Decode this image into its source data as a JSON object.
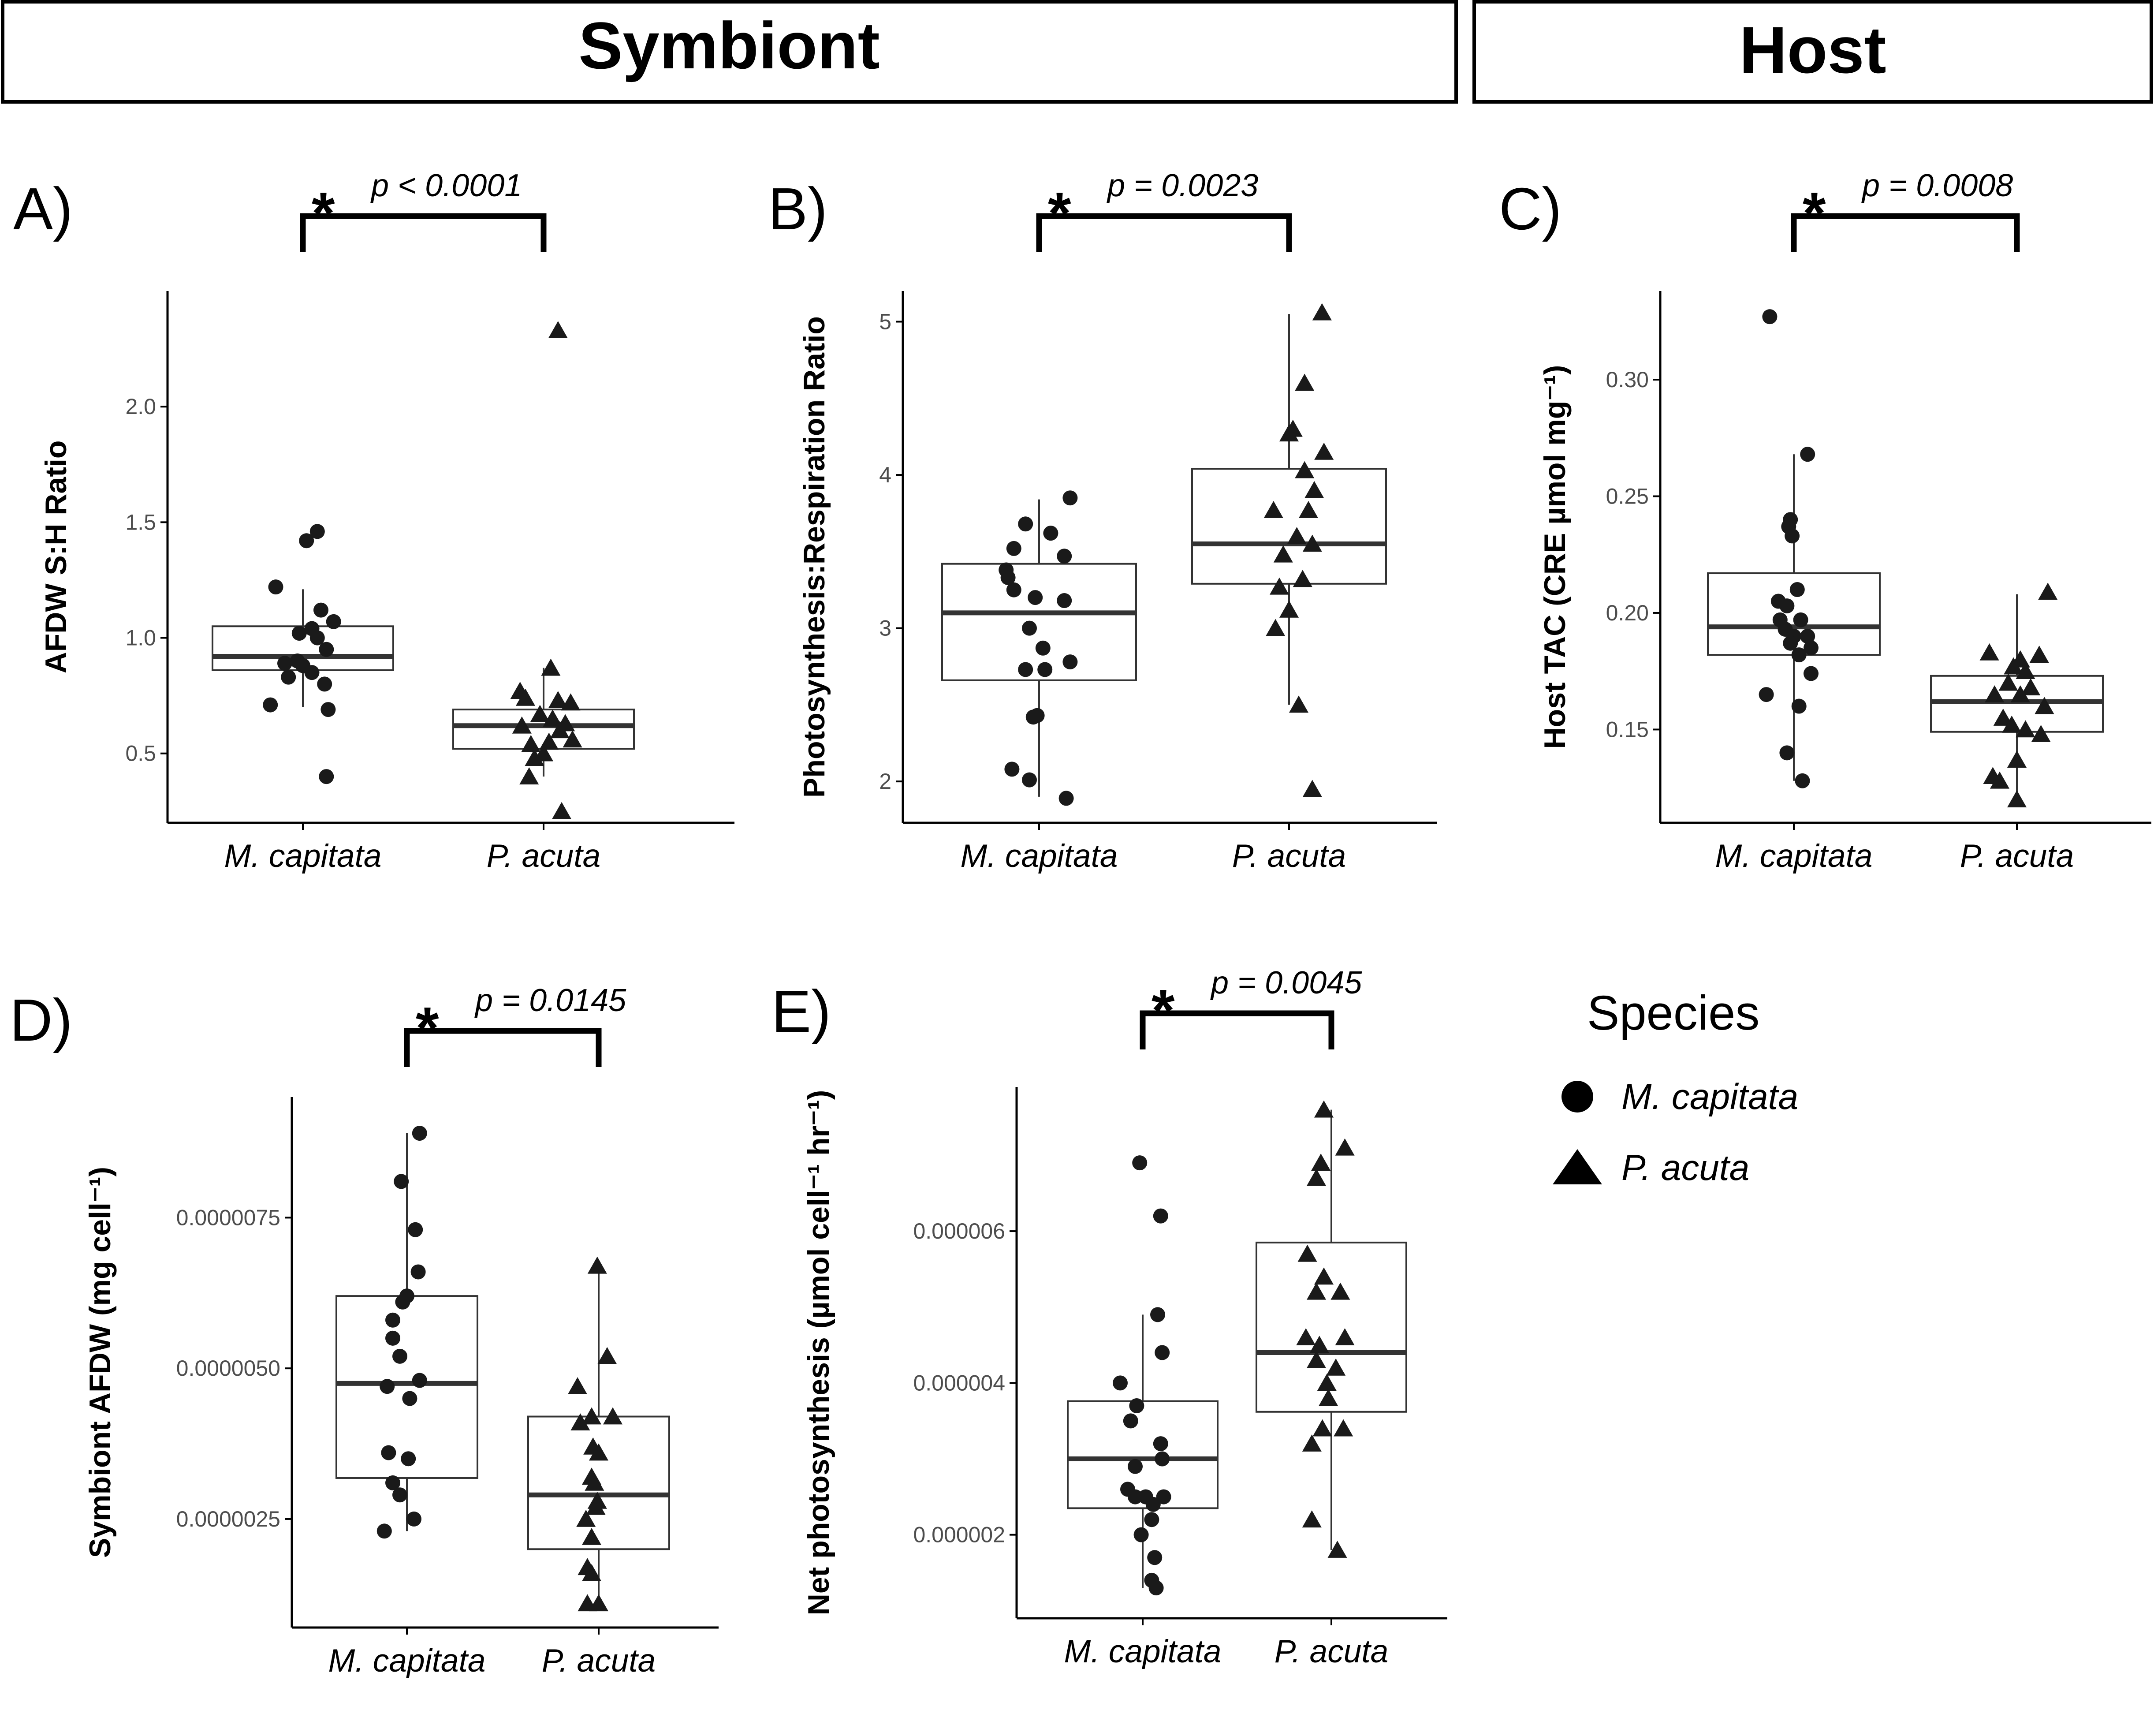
{
  "headers": [
    {
      "key": "symbiont",
      "label": "Symbiont"
    },
    {
      "key": "host",
      "label": "Host"
    }
  ],
  "legend": {
    "title": "Species",
    "items": [
      {
        "label": "M. capitata",
        "shape": "circle"
      },
      {
        "label": "P. acuta",
        "shape": "triangle"
      }
    ]
  },
  "colors": {
    "point": "#1a1a1a",
    "box_line": "#333333",
    "median": "#333333",
    "axis": "#000000",
    "tick_text": "#4d4d4d"
  },
  "chart_data": [
    {
      "type": "box",
      "letter": "A)",
      "ylabel": "AFDW S:H Ratio",
      "ylim": [
        0.2,
        2.5
      ],
      "yticks": [
        0.5,
        1.0,
        1.5,
        2.0
      ],
      "ytick_labels": [
        "0.5",
        "1.0",
        "1.5",
        "2.0"
      ],
      "categories": [
        "M. capitata",
        "P. acuta"
      ],
      "significance": {
        "star": "*",
        "label": "p < 0.0001"
      },
      "boxes": [
        {
          "q1": 0.86,
          "median": 0.92,
          "q3": 1.05,
          "whisker_low": 0.7,
          "whisker_high": 1.21
        },
        {
          "q1": 0.52,
          "median": 0.62,
          "q3": 0.69,
          "whisker_low": 0.4,
          "whisker_high": 0.87
        }
      ],
      "points": [
        [
          [
            -0.15,
            1.22
          ],
          [
            0.08,
            1.46
          ],
          [
            0.02,
            1.42
          ],
          [
            0.1,
            1.12
          ],
          [
            0.17,
            1.07
          ],
          [
            0.05,
            1.04
          ],
          [
            -0.02,
            1.02
          ],
          [
            0.08,
            1.0
          ],
          [
            0.13,
            0.95
          ],
          [
            -0.03,
            0.9
          ],
          [
            0.0,
            0.88
          ],
          [
            -0.1,
            0.89
          ],
          [
            0.05,
            0.85
          ],
          [
            -0.08,
            0.83
          ],
          [
            0.12,
            0.8
          ],
          [
            -0.18,
            0.71
          ],
          [
            0.14,
            0.69
          ],
          [
            0.13,
            0.4
          ]
        ],
        [
          [
            -0.13,
            0.77
          ],
          [
            -0.1,
            0.74
          ],
          [
            0.04,
            0.87
          ],
          [
            0.08,
            0.73
          ],
          [
            0.15,
            0.72
          ],
          [
            -0.02,
            0.67
          ],
          [
            0.05,
            0.65
          ],
          [
            0.09,
            0.6
          ],
          [
            -0.12,
            0.62
          ],
          [
            0.12,
            0.63
          ],
          [
            -0.07,
            0.54
          ],
          [
            0.16,
            0.56
          ],
          [
            0.03,
            0.55
          ],
          [
            -0.05,
            0.48
          ],
          [
            0.0,
            0.5
          ],
          [
            -0.08,
            0.4
          ],
          [
            0.1,
            0.25
          ],
          [
            0.08,
            2.33
          ]
        ]
      ]
    },
    {
      "type": "box",
      "letter": "B)",
      "ylabel": "Photosynthesis:Respiration Ratio",
      "ylim": [
        1.73,
        5.2
      ],
      "yticks": [
        2,
        3,
        4,
        5
      ],
      "ytick_labels": [
        "2",
        "3",
        "4",
        "5"
      ],
      "categories": [
        "M. capitata",
        "P. acuta"
      ],
      "significance": {
        "star": "*",
        "label": "p = 0.0023"
      },
      "boxes": [
        {
          "q1": 2.66,
          "median": 3.1,
          "q3": 3.42,
          "whisker_low": 1.9,
          "whisker_high": 3.84
        },
        {
          "q1": 3.29,
          "median": 3.55,
          "q3": 4.04,
          "whisker_low": 2.5,
          "whisker_high": 5.05
        }
      ],
      "points": [
        [
          [
            0.16,
            3.85
          ],
          [
            -0.07,
            3.68
          ],
          [
            0.06,
            3.62
          ],
          [
            -0.13,
            3.52
          ],
          [
            0.13,
            3.47
          ],
          [
            -0.17,
            3.38
          ],
          [
            -0.16,
            3.33
          ],
          [
            -0.13,
            3.25
          ],
          [
            0.13,
            3.18
          ],
          [
            -0.02,
            3.2
          ],
          [
            -0.05,
            3.0
          ],
          [
            0.02,
            2.87
          ],
          [
            0.16,
            2.78
          ],
          [
            -0.07,
            2.73
          ],
          [
            0.03,
            2.73
          ],
          [
            -0.03,
            2.42
          ],
          [
            -0.01,
            2.43
          ],
          [
            -0.14,
            2.08
          ],
          [
            -0.05,
            2.01
          ],
          [
            0.14,
            1.89
          ]
        ],
        [
          [
            0.17,
            5.06
          ],
          [
            0.08,
            4.6
          ],
          [
            0.02,
            4.3
          ],
          [
            0.0,
            4.27
          ],
          [
            0.18,
            4.15
          ],
          [
            0.08,
            4.03
          ],
          [
            0.13,
            3.9
          ],
          [
            -0.08,
            3.77
          ],
          [
            0.1,
            3.77
          ],
          [
            0.04,
            3.6
          ],
          [
            0.12,
            3.55
          ],
          [
            -0.03,
            3.48
          ],
          [
            0.07,
            3.32
          ],
          [
            -0.05,
            3.27
          ],
          [
            0.0,
            3.12
          ],
          [
            -0.07,
            3.0
          ],
          [
            0.05,
            2.5
          ],
          [
            0.12,
            1.95
          ]
        ]
      ]
    },
    {
      "type": "box",
      "letter": "C)",
      "ylabel": "Host TAC (CRE µmol mg⁻¹)",
      "ylim": [
        0.11,
        0.338
      ],
      "yticks": [
        0.15,
        0.2,
        0.25,
        0.3
      ],
      "ytick_labels": [
        "0.15",
        "0.20",
        "0.25",
        "0.30"
      ],
      "categories": [
        "M. capitata",
        "P. acuta"
      ],
      "significance": {
        "star": "*",
        "label": "p = 0.0008"
      },
      "boxes": [
        {
          "q1": 0.182,
          "median": 0.194,
          "q3": 0.217,
          "whisker_low": 0.128,
          "whisker_high": 0.268
        },
        {
          "q1": 0.149,
          "median": 0.162,
          "q3": 0.173,
          "whisker_low": 0.12,
          "whisker_high": 0.208
        }
      ],
      "points": [
        [
          [
            -0.14,
            0.327
          ],
          [
            0.08,
            0.268
          ],
          [
            -0.02,
            0.24
          ],
          [
            -0.03,
            0.237
          ],
          [
            -0.01,
            0.233
          ],
          [
            0.02,
            0.21
          ],
          [
            -0.09,
            0.205
          ],
          [
            -0.04,
            0.203
          ],
          [
            0.04,
            0.197
          ],
          [
            -0.08,
            0.197
          ],
          [
            -0.05,
            0.193
          ],
          [
            0.08,
            0.19
          ],
          [
            0.0,
            0.19
          ],
          [
            -0.02,
            0.187
          ],
          [
            0.1,
            0.185
          ],
          [
            0.03,
            0.182
          ],
          [
            0.1,
            0.174
          ],
          [
            -0.16,
            0.165
          ],
          [
            0.03,
            0.16
          ],
          [
            -0.04,
            0.14
          ],
          [
            0.05,
            0.128
          ]
        ],
        [
          [
            0.18,
            0.209
          ],
          [
            -0.16,
            0.183
          ],
          [
            0.13,
            0.182
          ],
          [
            0.02,
            0.18
          ],
          [
            -0.02,
            0.177
          ],
          [
            0.05,
            0.175
          ],
          [
            -0.05,
            0.17
          ],
          [
            0.08,
            0.168
          ],
          [
            0.02,
            0.165
          ],
          [
            -0.13,
            0.165
          ],
          [
            0.16,
            0.16
          ],
          [
            -0.08,
            0.155
          ],
          [
            -0.03,
            0.152
          ],
          [
            0.05,
            0.15
          ],
          [
            0.14,
            0.148
          ],
          [
            0.0,
            0.137
          ],
          [
            -0.14,
            0.13
          ],
          [
            -0.1,
            0.128
          ],
          [
            0.0,
            0.12
          ]
        ]
      ]
    },
    {
      "type": "box",
      "letter": "D)",
      "ylabel": "Symbiont AFDW (mg cell⁻¹)",
      "ylim": [
        7e-07,
        9.5e-06
      ],
      "yticks": [
        2.5e-06,
        5e-06,
        7.5e-06
      ],
      "ytick_labels": [
        "0.0000025",
        "0.0000050",
        "0.0000075"
      ],
      "categories": [
        "M. capitata",
        "P. acuta"
      ],
      "significance": {
        "star": "*",
        "label": "p = 0.0145"
      },
      "boxes": [
        {
          "q1": 3.18e-06,
          "median": 4.75e-06,
          "q3": 6.2e-06,
          "whisker_low": 2.3e-06,
          "whisker_high": 8.9e-06
        },
        {
          "q1": 2e-06,
          "median": 2.9e-06,
          "q3": 4.2e-06,
          "whisker_low": 1.1e-06,
          "whisker_high": 6.7e-06
        }
      ],
      "points": [
        [
          [
            0.09,
            8.9e-06
          ],
          [
            -0.04,
            8.1e-06
          ],
          [
            0.06,
            7.3e-06
          ],
          [
            0.08,
            6.6e-06
          ],
          [
            -0.03,
            6.1e-06
          ],
          [
            0.0,
            6.2e-06
          ],
          [
            -0.1,
            5.8e-06
          ],
          [
            -0.1,
            5.5e-06
          ],
          [
            -0.05,
            5.2e-06
          ],
          [
            0.09,
            4.8e-06
          ],
          [
            -0.14,
            4.7e-06
          ],
          [
            0.02,
            4.5e-06
          ],
          [
            -0.13,
            3.6e-06
          ],
          [
            0.01,
            3.5e-06
          ],
          [
            -0.1,
            3.1e-06
          ],
          [
            -0.05,
            2.9e-06
          ],
          [
            0.05,
            2.5e-06
          ],
          [
            -0.16,
            2.3e-06
          ]
        ],
        [
          [
            -0.01,
            6.7e-06
          ],
          [
            0.06,
            5.2e-06
          ],
          [
            -0.15,
            4.7e-06
          ],
          [
            0.1,
            4.2e-06
          ],
          [
            -0.05,
            4.2e-06
          ],
          [
            -0.13,
            4.1e-06
          ],
          [
            -0.04,
            3.7e-06
          ],
          [
            0.0,
            3.6e-06
          ],
          [
            -0.05,
            3.2e-06
          ],
          [
            -0.03,
            3.1e-06
          ],
          [
            -0.02,
            2.7e-06
          ],
          [
            -0.01,
            2.8e-06
          ],
          [
            -0.09,
            2.5e-06
          ],
          [
            -0.05,
            2.2e-06
          ],
          [
            -0.08,
            1.7e-06
          ],
          [
            -0.05,
            1.6e-06
          ],
          [
            -0.08,
            1.1e-06
          ],
          [
            0.0,
            1.1e-06
          ]
        ]
      ]
    },
    {
      "type": "box",
      "letter": "E)",
      "ylabel": "Net photosynthesis (µmol cell⁻¹ hr⁻¹)",
      "ylim": [
        9e-07,
        7.9e-06
      ],
      "yticks": [
        2e-06,
        4e-06,
        6e-06
      ],
      "ytick_labels": [
        "0.000002",
        "0.000004",
        "0.000006"
      ],
      "categories": [
        "M. capitata",
        "P. acuta"
      ],
      "significance": {
        "star": "*",
        "label": "p = 0.0045"
      },
      "boxes": [
        {
          "q1": 2.35e-06,
          "median": 3e-06,
          "q3": 3.76e-06,
          "whisker_low": 1.3e-06,
          "whisker_high": 4.9e-06
        },
        {
          "q1": 3.62e-06,
          "median": 4.4e-06,
          "q3": 5.85e-06,
          "whisker_low": 1.8e-06,
          "whisker_high": 7.6e-06
        }
      ],
      "points": [
        [
          [
            -0.02,
            6.9e-06
          ],
          [
            0.12,
            6.2e-06
          ],
          [
            0.1,
            4.9e-06
          ],
          [
            0.13,
            4.4e-06
          ],
          [
            -0.15,
            4e-06
          ],
          [
            -0.04,
            3.7e-06
          ],
          [
            -0.08,
            3.5e-06
          ],
          [
            0.12,
            3.2e-06
          ],
          [
            -0.05,
            2.9e-06
          ],
          [
            0.13,
            3e-06
          ],
          [
            -0.1,
            2.6e-06
          ],
          [
            0.14,
            2.5e-06
          ],
          [
            0.02,
            2.5e-06
          ],
          [
            -0.05,
            2.5e-06
          ],
          [
            0.07,
            2.4e-06
          ],
          [
            0.06,
            2.2e-06
          ],
          [
            -0.01,
            2e-06
          ],
          [
            0.08,
            1.7e-06
          ],
          [
            0.06,
            1.4e-06
          ],
          [
            0.09,
            1.3e-06
          ]
        ],
        [
          [
            -0.05,
            7.6e-06
          ],
          [
            0.09,
            7.1e-06
          ],
          [
            -0.07,
            6.9e-06
          ],
          [
            -0.1,
            6.7e-06
          ],
          [
            -0.16,
            5.7e-06
          ],
          [
            -0.05,
            5.4e-06
          ],
          [
            -0.1,
            5.2e-06
          ],
          [
            0.06,
            5.2e-06
          ],
          [
            -0.17,
            4.6e-06
          ],
          [
            -0.08,
            4.5e-06
          ],
          [
            0.09,
            4.6e-06
          ],
          [
            -0.1,
            4.3e-06
          ],
          [
            0.03,
            4.2e-06
          ],
          [
            -0.03,
            4e-06
          ],
          [
            -0.02,
            3.8e-06
          ],
          [
            0.08,
            3.4e-06
          ],
          [
            -0.06,
            3.4e-06
          ],
          [
            -0.13,
            3.2e-06
          ],
          [
            -0.13,
            2.2e-06
          ],
          [
            0.04,
            1.8e-06
          ]
        ]
      ]
    }
  ]
}
